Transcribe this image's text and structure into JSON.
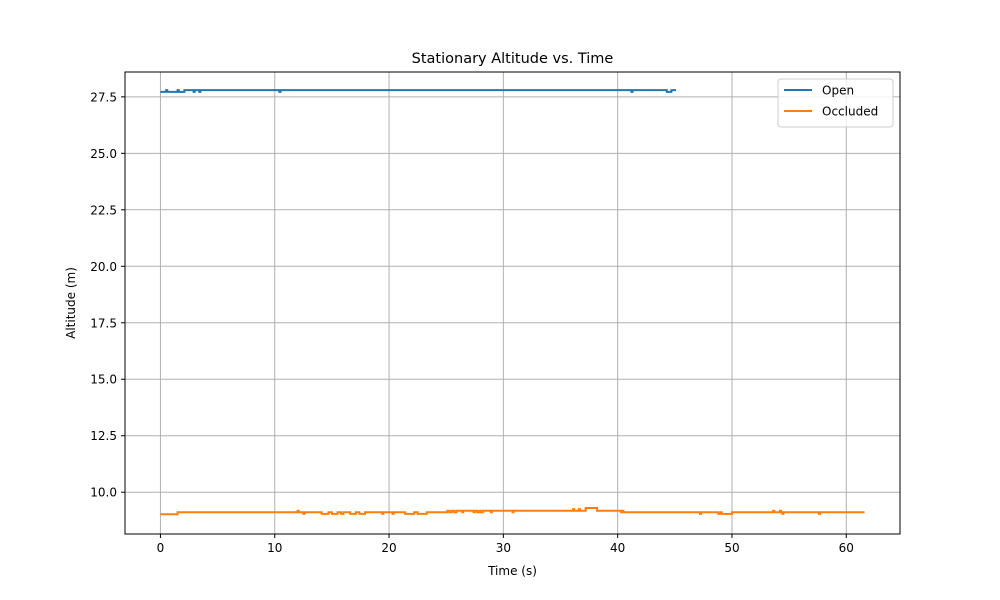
{
  "chart_data": {
    "type": "line",
    "title": "Stationary Altitude vs. Time",
    "xlabel": "Time (s)",
    "ylabel": "Altitude (m)",
    "xlim": [
      -3.1,
      64.7
    ],
    "ylim": [
      8.15,
      28.6
    ],
    "xticks": [
      0,
      10,
      20,
      30,
      40,
      50,
      60
    ],
    "xtick_labels": [
      "0",
      "10",
      "20",
      "30",
      "40",
      "50",
      "60"
    ],
    "yticks": [
      10.0,
      12.5,
      15.0,
      17.5,
      20.0,
      22.5,
      25.0,
      27.5
    ],
    "ytick_labels": [
      "10.0",
      "12.5",
      "15.0",
      "17.5",
      "20.0",
      "22.5",
      "25.0",
      "27.5"
    ],
    "grid": true,
    "legend_position": "top-right",
    "series": [
      {
        "name": "Open",
        "color": "#1f77b4",
        "points": [
          [
            0,
            27.72
          ],
          [
            0.4,
            27.72
          ],
          [
            0.5,
            27.8
          ],
          [
            0.6,
            27.72
          ],
          [
            1.4,
            27.72
          ],
          [
            1.5,
            27.8
          ],
          [
            1.6,
            27.72
          ],
          [
            2.0,
            27.72
          ],
          [
            2.1,
            27.8
          ],
          [
            2.8,
            27.8
          ],
          [
            2.9,
            27.72
          ],
          [
            3.0,
            27.8
          ],
          [
            3.3,
            27.8
          ],
          [
            3.4,
            27.72
          ],
          [
            3.5,
            27.8
          ],
          [
            10.3,
            27.8
          ],
          [
            10.4,
            27.72
          ],
          [
            10.5,
            27.8
          ],
          [
            41.1,
            27.8
          ],
          [
            41.2,
            27.72
          ],
          [
            41.3,
            27.8
          ],
          [
            44.2,
            27.8
          ],
          [
            44.3,
            27.72
          ],
          [
            44.6,
            27.72
          ],
          [
            44.7,
            27.8
          ],
          [
            45.1,
            27.8
          ]
        ]
      },
      {
        "name": "Occluded",
        "color": "#ff7f0e",
        "points": [
          [
            0,
            9.02
          ],
          [
            1.4,
            9.02
          ],
          [
            1.5,
            9.11
          ],
          [
            11.9,
            9.11
          ],
          [
            12.0,
            9.18
          ],
          [
            12.1,
            9.11
          ],
          [
            12.4,
            9.11
          ],
          [
            12.5,
            9.04
          ],
          [
            12.6,
            9.11
          ],
          [
            14.0,
            9.11
          ],
          [
            14.1,
            9.04
          ],
          [
            14.6,
            9.04
          ],
          [
            14.7,
            9.11
          ],
          [
            14.9,
            9.11
          ],
          [
            15.0,
            9.04
          ],
          [
            15.4,
            9.04
          ],
          [
            15.5,
            9.11
          ],
          [
            15.7,
            9.11
          ],
          [
            15.8,
            9.04
          ],
          [
            16.0,
            9.11
          ],
          [
            16.5,
            9.11
          ],
          [
            16.6,
            9.04
          ],
          [
            17.0,
            9.04
          ],
          [
            17.1,
            9.11
          ],
          [
            17.3,
            9.11
          ],
          [
            17.4,
            9.04
          ],
          [
            17.8,
            9.04
          ],
          [
            17.9,
            9.11
          ],
          [
            19.3,
            9.11
          ],
          [
            19.4,
            9.04
          ],
          [
            19.5,
            9.11
          ],
          [
            20.2,
            9.11
          ],
          [
            20.3,
            9.04
          ],
          [
            20.4,
            9.11
          ],
          [
            21.3,
            9.11
          ],
          [
            21.4,
            9.04
          ],
          [
            22.1,
            9.04
          ],
          [
            22.2,
            9.11
          ],
          [
            22.4,
            9.11
          ],
          [
            22.5,
            9.04
          ],
          [
            23.2,
            9.04
          ],
          [
            23.3,
            9.11
          ],
          [
            25.0,
            9.11
          ],
          [
            25.1,
            9.18
          ],
          [
            25.3,
            9.11
          ],
          [
            25.5,
            9.18
          ],
          [
            25.7,
            9.11
          ],
          [
            25.9,
            9.18
          ],
          [
            26.3,
            9.18
          ],
          [
            26.4,
            9.11
          ],
          [
            26.5,
            9.18
          ],
          [
            27.3,
            9.18
          ],
          [
            27.4,
            9.11
          ],
          [
            27.5,
            9.18
          ],
          [
            27.7,
            9.11
          ],
          [
            27.9,
            9.18
          ],
          [
            28.0,
            9.11
          ],
          [
            28.2,
            9.18
          ],
          [
            28.8,
            9.18
          ],
          [
            28.9,
            9.11
          ],
          [
            29.0,
            9.18
          ],
          [
            30.7,
            9.18
          ],
          [
            30.8,
            9.11
          ],
          [
            30.9,
            9.18
          ],
          [
            36.0,
            9.18
          ],
          [
            36.1,
            9.25
          ],
          [
            36.2,
            9.18
          ],
          [
            36.5,
            9.18
          ],
          [
            36.6,
            9.25
          ],
          [
            36.7,
            9.18
          ],
          [
            37.1,
            9.18
          ],
          [
            37.2,
            9.3
          ],
          [
            38.1,
            9.3
          ],
          [
            38.2,
            9.18
          ],
          [
            40.2,
            9.18
          ],
          [
            40.3,
            9.11
          ],
          [
            40.4,
            9.18
          ],
          [
            40.5,
            9.11
          ],
          [
            47.1,
            9.11
          ],
          [
            47.2,
            9.04
          ],
          [
            47.3,
            9.11
          ],
          [
            48.7,
            9.11
          ],
          [
            48.8,
            9.04
          ],
          [
            49.0,
            9.11
          ],
          [
            49.1,
            9.04
          ],
          [
            49.9,
            9.04
          ],
          [
            50.0,
            9.11
          ],
          [
            53.5,
            9.11
          ],
          [
            53.6,
            9.18
          ],
          [
            53.7,
            9.11
          ],
          [
            54.1,
            9.11
          ],
          [
            54.2,
            9.18
          ],
          [
            54.3,
            9.11
          ],
          [
            54.4,
            9.04
          ],
          [
            54.5,
            9.11
          ],
          [
            57.5,
            9.11
          ],
          [
            57.6,
            9.04
          ],
          [
            57.7,
            9.11
          ],
          [
            61.6,
            9.11
          ]
        ]
      }
    ]
  }
}
